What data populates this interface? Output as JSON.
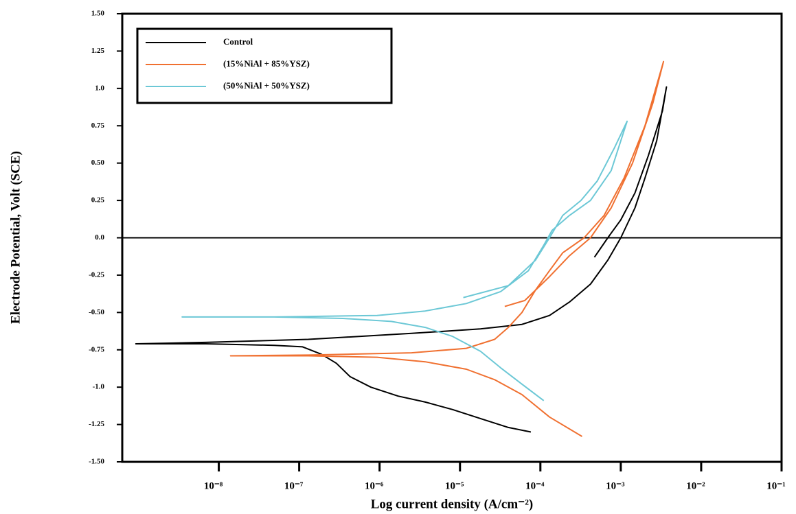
{
  "chart_data": {
    "type": "line",
    "x_label": "Log current density (A/cm⁻²)",
    "y_label": "Electrode Potential, Volt (SCE)",
    "xscale": "log",
    "xlim": [
      6.3e-10,
      0.1
    ],
    "ylim": [
      -1.5,
      1.5
    ],
    "xticks": [
      {
        "value": 1e-08,
        "label": "10⁻⁸"
      },
      {
        "value": 1e-07,
        "label": "10⁻⁷"
      },
      {
        "value": 1e-06,
        "label": "10⁻⁶"
      },
      {
        "value": 1e-05,
        "label": "10⁻⁵"
      },
      {
        "value": 0.0001,
        "label": "10⁻⁴"
      },
      {
        "value": 0.001,
        "label": "10⁻³"
      },
      {
        "value": 0.01,
        "label": "10⁻²"
      },
      {
        "value": 0.1,
        "label": "10⁻¹"
      }
    ],
    "yticks": [
      {
        "value": 1.5,
        "label": "1.50"
      },
      {
        "value": 1.25,
        "label": "1.25"
      },
      {
        "value": 1,
        "label": "1.0"
      },
      {
        "value": 0.75,
        "label": "0.75"
      },
      {
        "value": 0.5,
        "label": "0.50"
      },
      {
        "value": 0.25,
        "label": "0.25"
      },
      {
        "value": 0,
        "label": "0.0"
      },
      {
        "value": -0.25,
        "label": "-0.25"
      },
      {
        "value": -0.5,
        "label": "-0.50"
      },
      {
        "value": -0.75,
        "label": "-0.75"
      },
      {
        "value": -1,
        "label": "-1.0"
      },
      {
        "value": -1.25,
        "label": "-1.25"
      },
      {
        "value": -1.5,
        "label": "-1.50"
      }
    ],
    "hline": 0,
    "legend": "upper left",
    "series": [
      {
        "name": "Control",
        "color": "#000000",
        "x": [
          7.6e-05,
          4e-05,
          1.8e-05,
          8.1e-06,
          3.7e-06,
          1.7e-06,
          7.8e-07,
          4.3e-07,
          2.9e-07,
          1.9e-07,
          1.1e-07,
          4.9e-08,
          6.9e-09,
          9.3e-10,
          6.9e-09,
          1.3e-07,
          2.5e-06,
          1.8e-05,
          5.9e-05,
          0.00013,
          0.00023,
          0.00042,
          0.00069,
          0.001,
          0.0015,
          0.002,
          0.0028,
          0.0037,
          0.0033,
          0.0022,
          0.0015,
          0.001,
          0.00069,
          0.00047
        ],
        "values": [
          -1.3,
          -1.27,
          -1.21,
          -1.15,
          -1.1,
          -1.06,
          -1.0,
          -0.93,
          -0.84,
          -0.78,
          -0.73,
          -0.72,
          -0.71,
          -0.71,
          -0.7,
          -0.68,
          -0.64,
          -0.61,
          -0.58,
          -0.52,
          -0.43,
          -0.31,
          -0.15,
          0.0,
          0.2,
          0.4,
          0.65,
          1.01,
          0.85,
          0.55,
          0.3,
          0.12,
          0.0,
          -0.13
        ]
      },
      {
        "name": "(15%NiAl + 85%YSZ)",
        "color": "#f07030",
        "x": [
          0.00033,
          0.00013,
          5.9e-05,
          2.7e-05,
          1.2e-05,
          3.7e-06,
          9.3e-07,
          1.3e-07,
          1.4e-08,
          1.3e-07,
          2.5e-06,
          1.2e-05,
          2.7e-05,
          4e-05,
          5.9e-05,
          8.7e-05,
          0.00013,
          0.00019,
          0.00035,
          0.00062,
          0.0011,
          0.002,
          0.0034,
          0.0025,
          0.0014,
          0.00076,
          0.00042,
          0.00023,
          0.00013,
          6.4e-05,
          3.6e-05
        ],
        "values": [
          -1.33,
          -1.2,
          -1.05,
          -0.95,
          -0.88,
          -0.83,
          -0.8,
          -0.79,
          -0.79,
          -0.785,
          -0.77,
          -0.74,
          -0.68,
          -0.6,
          -0.5,
          -0.35,
          -0.22,
          -0.1,
          0.0,
          0.15,
          0.4,
          0.75,
          1.18,
          0.9,
          0.5,
          0.2,
          0.0,
          -0.12,
          -0.26,
          -0.42,
          -0.46
        ]
      },
      {
        "name": "(50%NiAl + 50%YSZ)",
        "color": "#6cc8d6",
        "x": [
          0.00011,
          5.9e-05,
          3.2e-05,
          1.8e-05,
          8.1e-06,
          3.7e-06,
          1.4e-06,
          3.5e-07,
          4.9e-08,
          3.5e-09,
          4.9e-08,
          9.3e-07,
          3.7e-06,
          1.2e-05,
          3.2e-05,
          7.1e-05,
          0.00011,
          0.00014,
          0.00023,
          0.00042,
          0.00076,
          0.0012,
          0.00083,
          0.00051,
          0.00032,
          0.00019,
          0.00013,
          8.7e-05,
          4e-05,
          1.1e-05
        ],
        "values": [
          -1.09,
          -0.98,
          -0.87,
          -0.76,
          -0.66,
          -0.6,
          -0.56,
          -0.54,
          -0.53,
          -0.53,
          -0.53,
          -0.52,
          -0.49,
          -0.44,
          -0.36,
          -0.22,
          -0.05,
          0.05,
          0.15,
          0.25,
          0.45,
          0.78,
          0.6,
          0.38,
          0.25,
          0.15,
          0.0,
          -0.15,
          -0.32,
          -0.4
        ]
      }
    ]
  }
}
